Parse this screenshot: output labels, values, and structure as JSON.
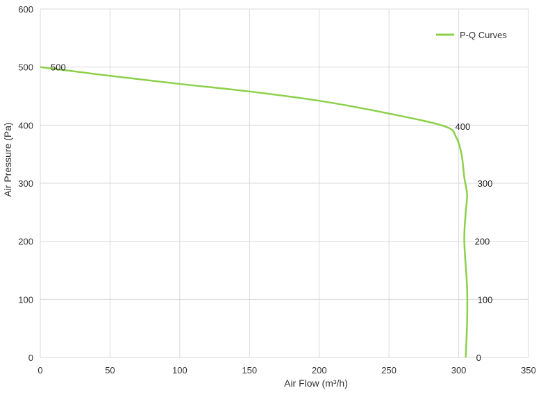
{
  "chart_data": {
    "type": "line",
    "title": "",
    "xlabel": "Air Flow  (m³/h)",
    "ylabel": "Air Pressure  (Pa)",
    "xlim": [
      0,
      350
    ],
    "ylim": [
      0,
      600
    ],
    "x_ticks": [
      0,
      50,
      100,
      150,
      200,
      250,
      300,
      350
    ],
    "y_ticks": [
      0,
      100,
      200,
      300,
      400,
      500,
      600
    ],
    "grid": true,
    "legend": {
      "position": "top-right",
      "entries": [
        "P-Q Curves"
      ]
    },
    "series": [
      {
        "name": "P-Q Curves",
        "color": "#8cd04a",
        "points": [
          {
            "x": 0,
            "y": 500
          },
          {
            "x": 50,
            "y": 485
          },
          {
            "x": 100,
            "y": 471
          },
          {
            "x": 150,
            "y": 458
          },
          {
            "x": 200,
            "y": 442
          },
          {
            "x": 250,
            "y": 420
          },
          {
            "x": 290,
            "y": 398
          },
          {
            "x": 298,
            "y": 380
          },
          {
            "x": 302,
            "y": 350
          },
          {
            "x": 304,
            "y": 310
          },
          {
            "x": 306,
            "y": 280
          },
          {
            "x": 305,
            "y": 250
          },
          {
            "x": 304,
            "y": 200
          },
          {
            "x": 306,
            "y": 120
          },
          {
            "x": 306,
            "y": 60
          },
          {
            "x": 305,
            "y": 0
          }
        ]
      }
    ],
    "annotations": [
      {
        "text": "500",
        "x": 0,
        "y": 500,
        "anchor": "right"
      },
      {
        "text": "400",
        "x": 290,
        "y": 398,
        "anchor": "right"
      },
      {
        "text": "300",
        "x": 306,
        "y": 300,
        "anchor": "right"
      },
      {
        "text": "200",
        "x": 304,
        "y": 200,
        "anchor": "right"
      },
      {
        "text": "100",
        "x": 306,
        "y": 100,
        "anchor": "right"
      },
      {
        "text": "0",
        "x": 305,
        "y": 0,
        "anchor": "right"
      }
    ]
  }
}
